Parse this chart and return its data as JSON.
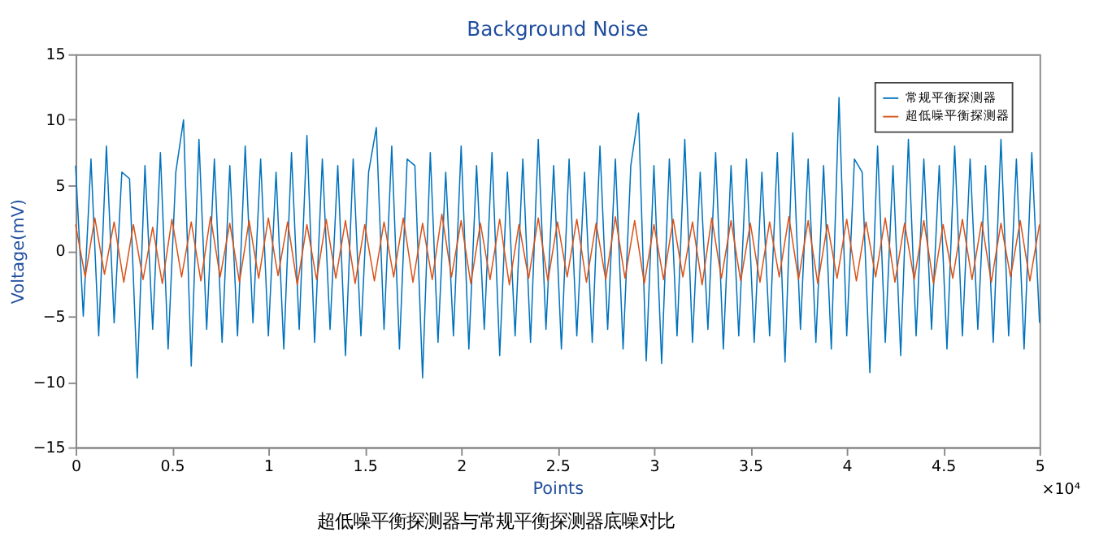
{
  "chart_data": {
    "type": "line",
    "title": "Background Noise",
    "xlabel": "Points",
    "ylabel": "Voltage(mV)",
    "annotations": [
      "×10⁴",
      "超低噪平衡探测器与常规平衡探测器底噪对比"
    ],
    "xlim": [
      0,
      5
    ],
    "xticks": [
      0,
      0.5,
      1,
      1.5,
      2,
      2.5,
      3,
      3.5,
      4,
      4.5,
      5
    ],
    "ylim": [
      -15,
      15
    ],
    "yticks": [
      -15,
      -10,
      -5,
      0,
      5,
      10,
      15
    ],
    "grid": false,
    "legend": "top right",
    "line_style": "solid",
    "marker": "none",
    "series": [
      {
        "name": "常规平衡探测器",
        "color": "#0072bd",
        "x": [
          0,
          0.04,
          0.08,
          0.12,
          0.16,
          0.2,
          0.24,
          0.28,
          0.32,
          0.36,
          0.4,
          0.44,
          0.48,
          0.52,
          0.56,
          0.6,
          0.64,
          0.68,
          0.72,
          0.76,
          0.8,
          0.84,
          0.88,
          0.92,
          0.96,
          1,
          1.04,
          1.08,
          1.12,
          1.16,
          1.2,
          1.24,
          1.28,
          1.32,
          1.36,
          1.4,
          1.44,
          1.48,
          1.52,
          1.56,
          1.6,
          1.64,
          1.68,
          1.72,
          1.76,
          1.8,
          1.84,
          1.88,
          1.92,
          1.96,
          2,
          2.04,
          2.08,
          2.12,
          2.16,
          2.2,
          2.24,
          2.28,
          2.32,
          2.36,
          2.4,
          2.44,
          2.48,
          2.52,
          2.56,
          2.6,
          2.64,
          2.68,
          2.72,
          2.76,
          2.8,
          2.84,
          2.88,
          2.92,
          2.96,
          3,
          3.04,
          3.08,
          3.12,
          3.16,
          3.2,
          3.24,
          3.28,
          3.32,
          3.36,
          3.4,
          3.44,
          3.48,
          3.52,
          3.56,
          3.6,
          3.64,
          3.68,
          3.72,
          3.76,
          3.8,
          3.84,
          3.88,
          3.92,
          3.96,
          4,
          4.04,
          4.08,
          4.12,
          4.16,
          4.2,
          4.24,
          4.28,
          4.32,
          4.36,
          4.4,
          4.44,
          4.48,
          4.52,
          4.56,
          4.6,
          4.64,
          4.68,
          4.72,
          4.76,
          4.8,
          4.84,
          4.88,
          4.92,
          4.96,
          5
        ],
        "values": [
          6.5,
          -5,
          7,
          -6.5,
          8,
          -5.5,
          6,
          5.5,
          -9.7,
          6.5,
          -6,
          7.5,
          -7.5,
          6,
          10,
          -8.8,
          8.5,
          -6,
          7,
          -7,
          6.5,
          -6.5,
          8,
          -5.5,
          7,
          -6.5,
          6,
          -7.5,
          7.5,
          -6,
          8.8,
          -7,
          7,
          -6,
          6.5,
          -8,
          7,
          -6.5,
          6,
          9.4,
          -6,
          8,
          -7.5,
          7,
          6.5,
          -9.7,
          7.5,
          -7,
          6,
          -6.5,
          8,
          -7.5,
          6.5,
          -6,
          7.5,
          -8,
          6,
          -6.5,
          7,
          -7,
          8.5,
          -6,
          6.5,
          -7.5,
          7,
          -6.5,
          6,
          -7,
          8,
          -6,
          7,
          -7.5,
          6.5,
          10.5,
          -8.4,
          6.5,
          -8.6,
          7,
          -6.5,
          8.5,
          -7,
          6,
          -6,
          7.5,
          -7.5,
          6.5,
          -6.5,
          7,
          -7,
          6,
          -6.5,
          7.5,
          -8.5,
          9,
          -6,
          7,
          -7,
          6.5,
          -7.5,
          11.7,
          -6.5,
          7,
          6,
          -9.3,
          8,
          -7,
          6.5,
          -8,
          8.5,
          -6.5,
          7,
          -6,
          6.5,
          -7.5,
          8,
          -6.5,
          7,
          -6,
          6.5,
          -7,
          8.5,
          -6.5,
          7,
          -7.5,
          7.5,
          -5.5
        ]
      },
      {
        "name": "超低噪平衡探测器",
        "color": "#d95319",
        "x": [
          0,
          0.05,
          0.1,
          0.15,
          0.2,
          0.25,
          0.3,
          0.35,
          0.4,
          0.45,
          0.5,
          0.55,
          0.6,
          0.65,
          0.7,
          0.75,
          0.8,
          0.85,
          0.9,
          0.95,
          1,
          1.05,
          1.1,
          1.15,
          1.2,
          1.25,
          1.3,
          1.35,
          1.4,
          1.45,
          1.5,
          1.55,
          1.6,
          1.65,
          1.7,
          1.75,
          1.8,
          1.85,
          1.9,
          1.95,
          2,
          2.05,
          2.1,
          2.15,
          2.2,
          2.25,
          2.3,
          2.35,
          2.4,
          2.45,
          2.5,
          2.55,
          2.6,
          2.65,
          2.7,
          2.75,
          2.8,
          2.85,
          2.9,
          2.95,
          3,
          3.05,
          3.1,
          3.15,
          3.2,
          3.25,
          3.3,
          3.35,
          3.4,
          3.45,
          3.5,
          3.55,
          3.6,
          3.65,
          3.7,
          3.75,
          3.8,
          3.85,
          3.9,
          3.95,
          4,
          4.05,
          4.1,
          4.15,
          4.2,
          4.25,
          4.3,
          4.35,
          4.4,
          4.45,
          4.5,
          4.55,
          4.6,
          4.65,
          4.7,
          4.75,
          4.8,
          4.85,
          4.9,
          4.95,
          5
        ],
        "values": [
          2,
          -2,
          2.5,
          -1.8,
          2.2,
          -2.4,
          2,
          -2.2,
          1.8,
          -2.5,
          2.4,
          -2,
          2.2,
          -2.3,
          2.6,
          -2,
          2.1,
          -2.4,
          2.3,
          -2.1,
          2.5,
          -1.9,
          2.2,
          -2.6,
          2,
          -2.2,
          2.4,
          -2.1,
          2.3,
          -2.5,
          2,
          -2.3,
          2.2,
          -2,
          2.5,
          -2.4,
          2.1,
          -2.2,
          2.8,
          -2,
          2.3,
          -2.5,
          2.1,
          -2.2,
          2.4,
          -2.6,
          2,
          -2.1,
          2.5,
          -2.3,
          2.2,
          -2,
          2.4,
          -2.4,
          2.1,
          -2.2,
          2.6,
          -2.1,
          2.3,
          -2.5,
          2,
          -2.2,
          2.4,
          -2,
          2.2,
          -2.6,
          2.5,
          -2.1,
          2.3,
          -2.3,
          2.1,
          -2.4,
          2.2,
          -2,
          2.6,
          -2.2,
          2.3,
          -2.5,
          2,
          -2.1,
          2.4,
          -2.3,
          2.2,
          -2,
          2.5,
          -2.4,
          2.1,
          -2.2,
          2.3,
          -2.5,
          2,
          -2.1,
          2.4,
          -2.2,
          2.2,
          -2.4,
          2.1,
          -2,
          2.3,
          -2.3,
          2
        ]
      }
    ]
  }
}
